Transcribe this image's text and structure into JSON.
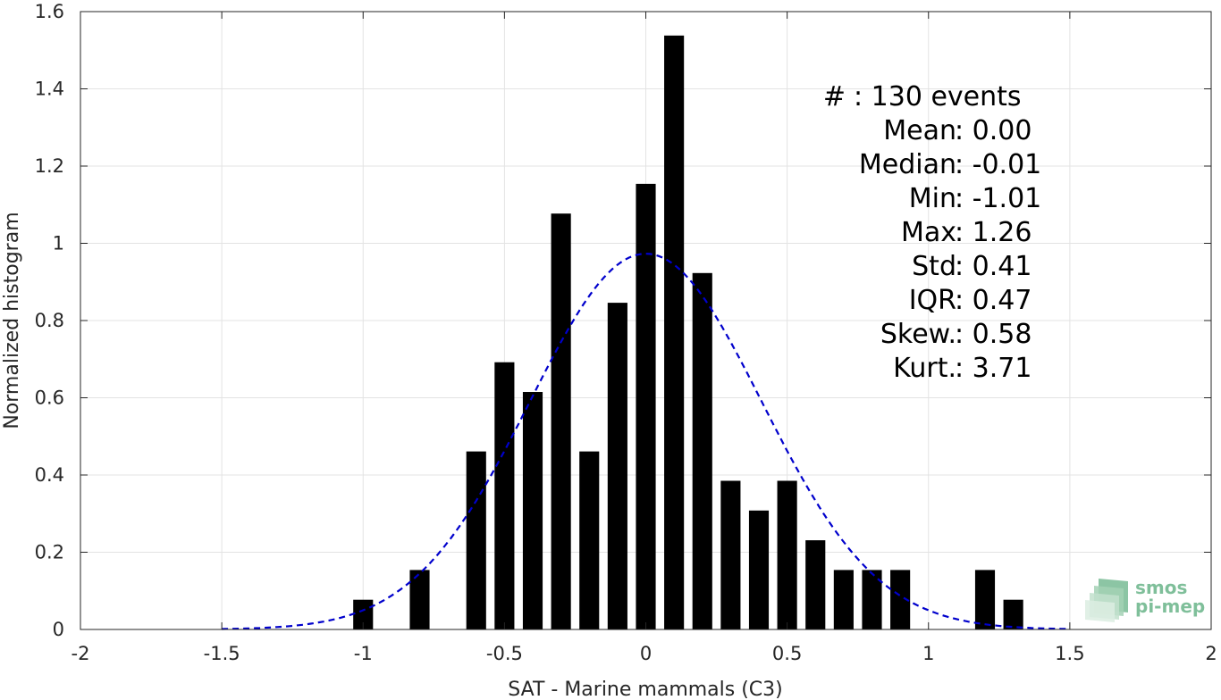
{
  "chart_data": {
    "type": "bar",
    "xlabel": "SAT - Marine mammals (C3)",
    "ylabel": "Normalized histogram",
    "xlim": [
      -2,
      2
    ],
    "ylim": [
      0,
      1.6
    ],
    "xticks": [
      -2,
      -1.5,
      -1,
      -0.5,
      0,
      0.5,
      1,
      1.5,
      2
    ],
    "xtick_labels": [
      "-2",
      "-1.5",
      "-1",
      "-0.5",
      "0",
      "0.5",
      "1",
      "1.5",
      "2"
    ],
    "yticks": [
      0,
      0.2,
      0.4,
      0.6,
      0.8,
      1,
      1.2,
      1.4,
      1.6
    ],
    "ytick_labels": [
      "0",
      "0.2",
      "0.4",
      "0.6",
      "0.8",
      "1",
      "1.2",
      "1.4",
      "1.6"
    ],
    "grid": true,
    "bar_color": "#000000",
    "bar_width": 0.07,
    "bins": [
      {
        "x": -1.0,
        "value": 0.077
      },
      {
        "x": -0.8,
        "value": 0.154
      },
      {
        "x": -0.6,
        "value": 0.461
      },
      {
        "x": -0.5,
        "value": 0.692
      },
      {
        "x": -0.4,
        "value": 0.615
      },
      {
        "x": -0.3,
        "value": 1.077
      },
      {
        "x": -0.2,
        "value": 0.461
      },
      {
        "x": -0.1,
        "value": 0.846
      },
      {
        "x": 0.0,
        "value": 1.154
      },
      {
        "x": 0.1,
        "value": 1.538
      },
      {
        "x": 0.2,
        "value": 0.923
      },
      {
        "x": 0.3,
        "value": 0.385
      },
      {
        "x": 0.4,
        "value": 0.308
      },
      {
        "x": 0.5,
        "value": 0.385
      },
      {
        "x": 0.6,
        "value": 0.231
      },
      {
        "x": 0.7,
        "value": 0.154
      },
      {
        "x": 0.8,
        "value": 0.154
      },
      {
        "x": 0.9,
        "value": 0.154
      },
      {
        "x": 1.2,
        "value": 0.154
      },
      {
        "x": 1.3,
        "value": 0.077
      }
    ],
    "fit_curve": {
      "kind": "normal",
      "mean": 0.0,
      "std": 0.41,
      "x_range": [
        -1.5,
        1.5
      ],
      "color": "#0000cc",
      "style": "dashed"
    },
    "stats": [
      {
        "label": "#",
        "value": ": 130 events"
      },
      {
        "label": "Mean",
        "value": ": 0.00"
      },
      {
        "label": "Median",
        "value": ": -0.01"
      },
      {
        "label": "Min",
        "value": ": -1.01"
      },
      {
        "label": "Max",
        "value": ": 1.26"
      },
      {
        "label": "Std",
        "value": ": 0.41"
      },
      {
        "label": "IQR",
        "value": ": 0.47"
      },
      {
        "label": "Skew.",
        "value": ": 0.58"
      },
      {
        "label": "Kurt.",
        "value": ": 3.71"
      }
    ]
  },
  "logo": {
    "line1": "smos",
    "line2": "pi-mep",
    "color": "#7fbf9a"
  }
}
